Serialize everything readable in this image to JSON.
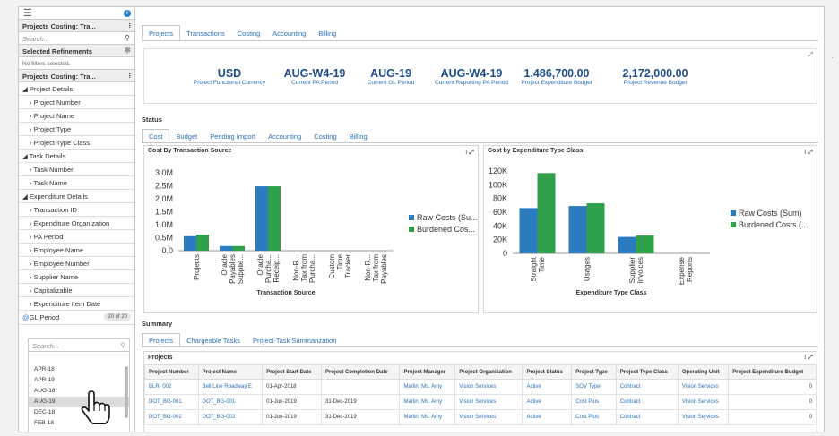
{
  "sidebar": {
    "title1": "Projects Costing: Tra...",
    "search_placeholder": "Search...",
    "refinements": "Selected Refinements",
    "no_filters": "No filters selected.",
    "title2": "Projects Costing: Tra...",
    "items": [
      {
        "label": "Project Details",
        "group": true
      },
      {
        "label": "Project Number",
        "group": false
      },
      {
        "label": "Project Name",
        "group": false
      },
      {
        "label": "Project Type",
        "group": false
      },
      {
        "label": "Project Type Class",
        "group": false
      },
      {
        "label": "Task Details",
        "group": true
      },
      {
        "label": "Task Number",
        "group": false
      },
      {
        "label": "Task Name",
        "group": false
      },
      {
        "label": "Expenditure Details",
        "group": true
      },
      {
        "label": "Transaction ID",
        "group": false
      },
      {
        "label": "Expenditure Organization",
        "group": false
      },
      {
        "label": "PA Period",
        "group": false
      },
      {
        "label": "Employee Name",
        "group": false
      },
      {
        "label": "Employee Number",
        "group": false
      },
      {
        "label": "Supplier Name",
        "group": false
      },
      {
        "label": "Capitalizable",
        "group": false
      },
      {
        "label": "Expenditure Item Date",
        "group": false
      }
    ],
    "gl_period": "GL Period",
    "gl_badge": "20 of 20",
    "gl_search": "Search...",
    "gl_values": [
      "APR-18",
      "APR-19",
      "AUG-18",
      "AUG-19",
      "DEC-18",
      "FEB-18"
    ]
  },
  "tabs_top": [
    "Projects",
    "Transactions",
    "Costing",
    "Accounting",
    "Billing"
  ],
  "kpis": [
    {
      "value": "USD",
      "label": "Project Functional Currency"
    },
    {
      "value": "AUG-W4-19",
      "label": "Current PA Period"
    },
    {
      "value": "AUG-19",
      "label": "Current GL Period"
    },
    {
      "value": "AUG-W4-19",
      "label": "Current Reporting PA Period"
    },
    {
      "value": "1,486,700.00",
      "label": "Project Expenditure Budget"
    },
    {
      "value": "2,172,000.00",
      "label": "Project Revenue Budget"
    }
  ],
  "status_label": "Status",
  "tabs_status": [
    "Cost",
    "Budget",
    "Pending Import",
    "Accounting",
    "Costing",
    "Billing"
  ],
  "colors": {
    "raw": "#2d7bbf",
    "burdened": "#2ea14a",
    "link": "#2a6fb6"
  },
  "chart_data": [
    {
      "type": "bar",
      "title": "Cost By Transaction Source",
      "xlabel": "Transaction Source",
      "ylabel": "",
      "ylim": [
        0,
        3000000
      ],
      "yticks": [
        "0.0",
        "0.5M",
        "1.0M",
        "1.5M",
        "2.0M",
        "2.5M",
        "3.0M"
      ],
      "categories": [
        "Projects",
        "Oracle Payables Supplie...",
        "Oracle Purcha... Receip...",
        "Non-R... Tax from Purcha...",
        "Custom Time Tracker",
        "Non-R... Tax from Payables"
      ],
      "series": [
        {
          "name": "Raw Costs (Su...",
          "values": [
            560000,
            180000,
            2480000,
            0,
            0,
            0
          ]
        },
        {
          "name": "Burdened Cos...",
          "values": [
            620000,
            180000,
            2480000,
            0,
            0,
            0
          ]
        }
      ]
    },
    {
      "type": "bar",
      "title": "Cost by Expenditure Type Class",
      "xlabel": "Expenditure Type Class",
      "ylabel": "",
      "ylim": [
        0,
        120000
      ],
      "yticks": [
        "0",
        "20K",
        "40K",
        "60K",
        "80K",
        "100K",
        "120K"
      ],
      "categories": [
        "Straight Time",
        "Usages",
        "Supplier Invoices",
        "Expense Reports"
      ],
      "series": [
        {
          "name": "Raw Costs (Sum)",
          "values": [
            66000,
            69000,
            24000,
            0
          ]
        },
        {
          "name": "Burdened Costs (...",
          "values": [
            117000,
            73000,
            26000,
            0
          ]
        }
      ]
    }
  ],
  "summary_label": "Summary",
  "tabs_summary": [
    "Projects",
    "Chargeable Tasks",
    "Project-Task Summarization"
  ],
  "table": {
    "title": "Projects",
    "columns": [
      "Project Number",
      "Project Name",
      "Project Start Date",
      "Project Completion Date",
      "Project Manager",
      "Project Organization",
      "Project Status",
      "Project Type",
      "Project Type Class",
      "Operating Unit",
      "Project Expenditure Budget"
    ],
    "rows": [
      [
        "BLR- 002",
        "Bell Line Roadway E",
        "01-Apr-2018",
        "",
        "Marlin, Ms. Amy",
        "Vision Services",
        "Active",
        "SOV Type",
        "Contract",
        "Vision Services",
        "0"
      ],
      [
        "DOT_BG-001",
        "DOT_BG-001",
        "01-Jun-2019",
        "31-Dec-2019",
        "Marlin, Ms. Amy",
        "Vision Services",
        "Active",
        "Cost Plus",
        "Contract",
        "Vision Services",
        "0"
      ],
      [
        "DOT_BG-002",
        "DOT_BG-002",
        "01-Jun-2019",
        "31-Dec-2019",
        "Marlin, Ms. Amy",
        "Vision Services",
        "Active",
        "Cost Plus",
        "Contract",
        "Vision Services",
        "0"
      ]
    ]
  }
}
